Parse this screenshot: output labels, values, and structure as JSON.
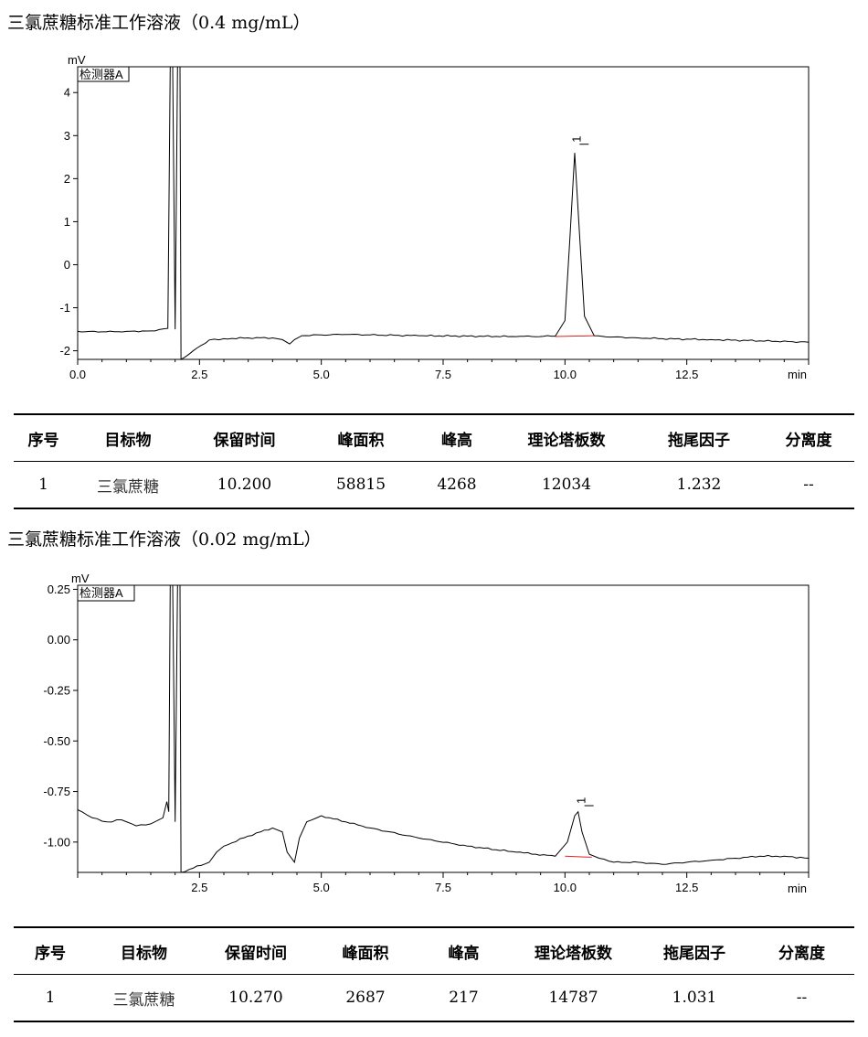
{
  "charts": [
    {
      "title": "三氯蔗糖标准工作溶液（0.4 mg/mL）",
      "legend_label": "检测器A",
      "y_unit": "mV",
      "x_unit": "min",
      "peak_label": "1",
      "x_tick_labels": [
        "0.0",
        "2.5",
        "5.0",
        "7.5",
        "10.0",
        "12.5"
      ],
      "y_tick_labels": [
        "4",
        "3",
        "2",
        "1",
        "0",
        "-1",
        "-2"
      ],
      "table": {
        "headers": [
          "序号",
          "目标物",
          "保留时间",
          "峰面积",
          "峰高",
          "理论塔板数",
          "拖尾因子",
          "分离度"
        ],
        "row": [
          "1",
          "三氯蔗糖",
          "10.200",
          "58815",
          "4268",
          "12034",
          "1.232",
          "--"
        ]
      }
    },
    {
      "title": "三氯蔗糖标准工作溶液（0.02 mg/mL）",
      "legend_label": "检测器A",
      "y_unit": "mV",
      "x_unit": "min",
      "peak_label": "1",
      "x_tick_labels": [
        "2.5",
        "5.0",
        "7.5",
        "10.0",
        "12.5"
      ],
      "y_tick_labels": [
        "0.25",
        "0.00",
        "-0.25",
        "-0.50",
        "-0.75",
        "-1.00"
      ],
      "table": {
        "headers": [
          "序号",
          "目标物",
          "保留时间",
          "峰面积",
          "峰高",
          "理论塔板数",
          "拖尾因子",
          "分离度"
        ],
        "row": [
          "1",
          "三氯蔗糖",
          "10.270",
          "2687",
          "217",
          "14787",
          "1.031",
          "--"
        ]
      }
    }
  ],
  "chart_data": [
    {
      "type": "line",
      "title": "三氯蔗糖标准工作溶液（0.4 mg/mL）",
      "xlabel": "min",
      "ylabel": "mV",
      "xlim": [
        0,
        15
      ],
      "ylim": [
        -2.2,
        4.6
      ],
      "x_ticks": [
        0,
        2.5,
        5,
        7.5,
        10,
        12.5
      ],
      "y_ticks": [
        4,
        3,
        2,
        1,
        0,
        -1,
        -2
      ],
      "legend": "检测器A",
      "colors": {
        "trace": "#000000",
        "baseline": "#e02020"
      },
      "series": [
        {
          "x": [
            0,
            0.5,
            1.0,
            1.5,
            1.85,
            1.9,
            1.95,
            2.0,
            2.05,
            2.1,
            2.12,
            2.7,
            3.0,
            3.5,
            4.0,
            4.2,
            4.35,
            4.45,
            4.6,
            5.0,
            5.5,
            6.0,
            7.0,
            8.0,
            9.0,
            9.8,
            10.0,
            10.1,
            10.2,
            10.3,
            10.4,
            10.6,
            11.0,
            11.5,
            12.0,
            13.0,
            14.0,
            15.0
          ],
          "y": [
            -1.55,
            -1.56,
            -1.55,
            -1.54,
            -1.48,
            4.6,
            4.6,
            -1.5,
            4.6,
            4.6,
            -2.2,
            -1.75,
            -1.72,
            -1.7,
            -1.7,
            -1.74,
            -1.84,
            -1.74,
            -1.65,
            -1.63,
            -1.62,
            -1.63,
            -1.65,
            -1.66,
            -1.67,
            -1.66,
            -1.3,
            0.6,
            2.6,
            0.7,
            -1.2,
            -1.65,
            -1.68,
            -1.7,
            -1.72,
            -1.74,
            -1.77,
            -1.8
          ]
        }
      ],
      "baseline_segment": {
        "x": [
          9.8,
          10.6
        ],
        "y": [
          -1.67,
          -1.65
        ]
      },
      "annotations": [
        {
          "text": "1",
          "x": 10.3,
          "y": 2.8
        }
      ]
    },
    {
      "type": "line",
      "title": "三氯蔗糖标准工作溶液（0.02 mg/mL）",
      "xlabel": "min",
      "ylabel": "mV",
      "xlim": [
        0,
        15
      ],
      "ylim": [
        -1.15,
        0.27
      ],
      "x_ticks": [
        2.5,
        5,
        7.5,
        10,
        12.5
      ],
      "y_ticks": [
        0.25,
        0,
        -0.25,
        -0.5,
        -0.75,
        -1.0
      ],
      "legend": "检测器A",
      "colors": {
        "trace": "#000000",
        "baseline": "#e02020"
      },
      "series": [
        {
          "x": [
            0,
            0.3,
            0.6,
            0.9,
            1.2,
            1.5,
            1.75,
            1.83,
            1.87,
            1.9,
            1.95,
            2.0,
            2.05,
            2.1,
            2.12,
            2.7,
            2.85,
            3.0,
            3.5,
            4.0,
            4.2,
            4.3,
            4.45,
            4.55,
            4.7,
            5.0,
            5.5,
            6.0,
            7.0,
            8.0,
            9.0,
            9.8,
            10.05,
            10.2,
            10.27,
            10.35,
            10.5,
            10.7,
            11.0,
            11.5,
            12.0,
            12.5,
            13.0,
            13.5,
            14.0,
            14.5,
            15.0
          ],
          "y": [
            -0.84,
            -0.88,
            -0.9,
            -0.89,
            -0.92,
            -0.91,
            -0.88,
            -0.8,
            -0.85,
            0.27,
            0.27,
            -0.9,
            0.27,
            0.27,
            -1.15,
            -1.1,
            -1.05,
            -1.02,
            -0.97,
            -0.93,
            -0.95,
            -1.05,
            -1.1,
            -0.98,
            -0.9,
            -0.87,
            -0.9,
            -0.93,
            -0.98,
            -1.02,
            -1.05,
            -1.07,
            -1.0,
            -0.87,
            -0.85,
            -0.95,
            -1.06,
            -1.08,
            -1.1,
            -1.1,
            -1.11,
            -1.1,
            -1.09,
            -1.08,
            -1.07,
            -1.07,
            -1.08
          ]
        }
      ],
      "baseline_segment": {
        "x": [
          10.0,
          10.55
        ],
        "y": [
          -1.07,
          -1.075
        ]
      },
      "annotations": [
        {
          "text": "1",
          "x": 10.4,
          "y": -0.82
        }
      ]
    }
  ]
}
